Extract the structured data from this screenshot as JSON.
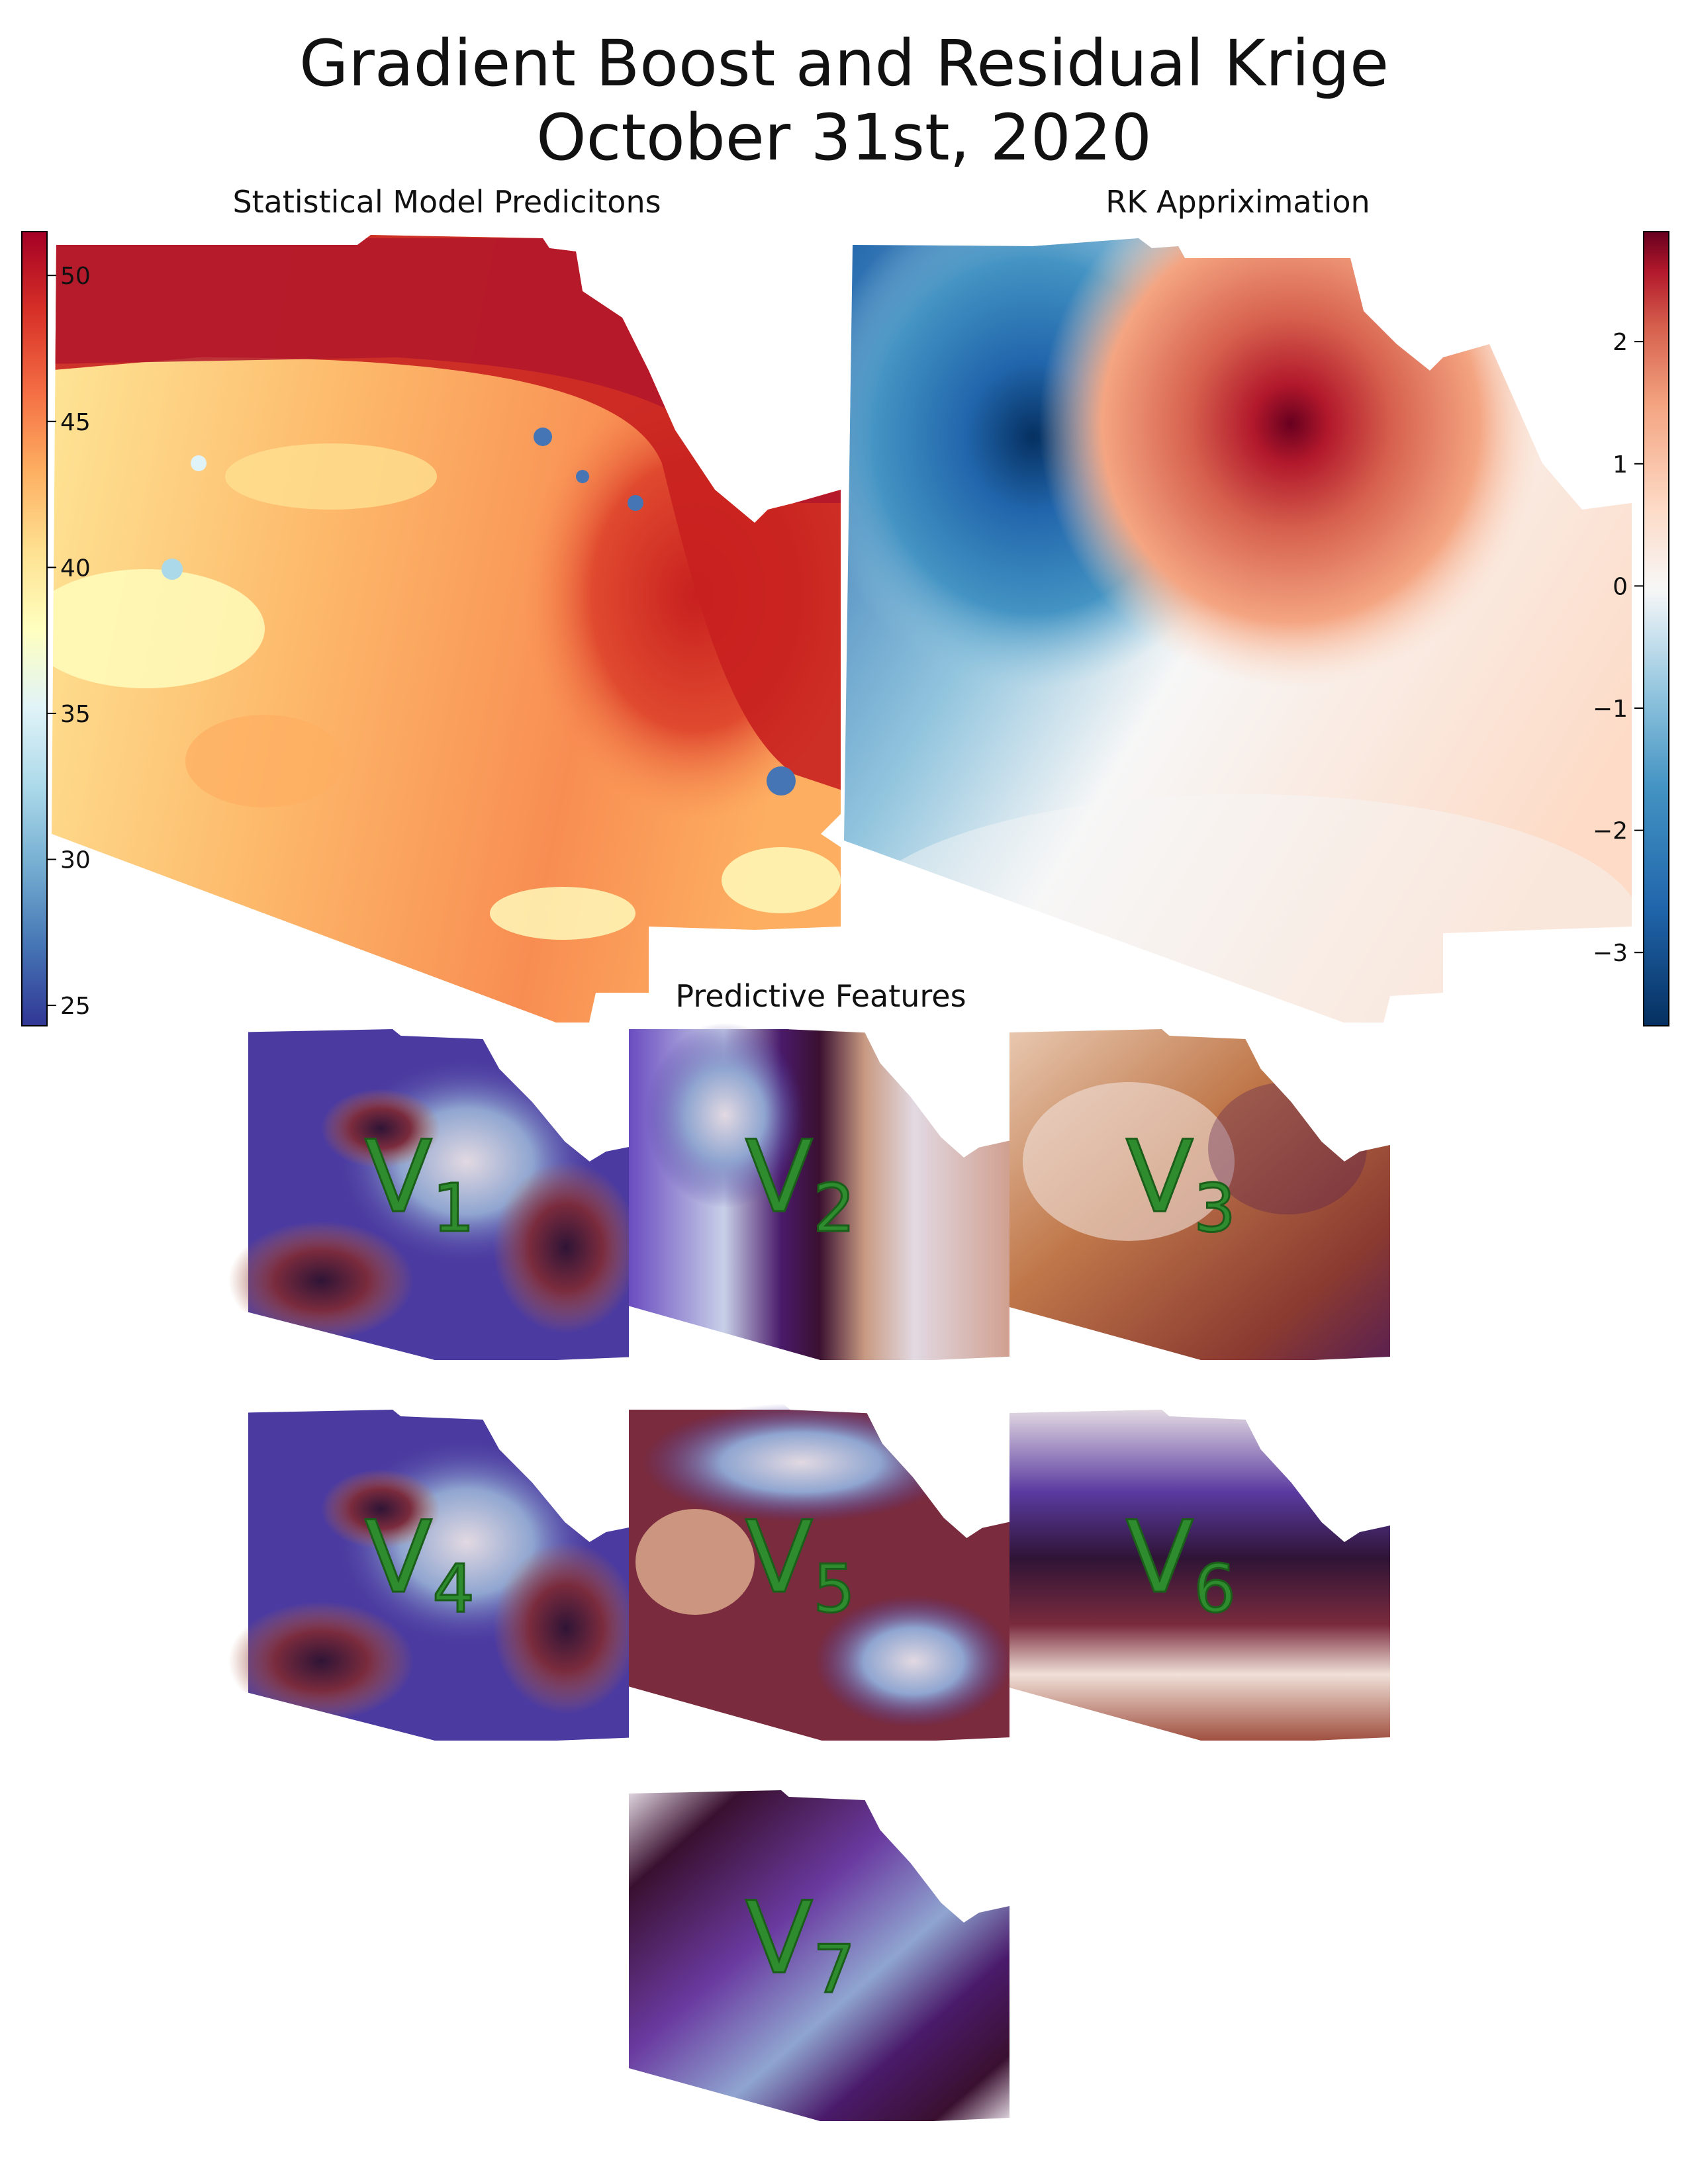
{
  "figure": {
    "title_line1": "Gradient Boost and Residual Krige",
    "title_line2": "October 31st, 2020",
    "left_panel_title": "Statistical Model Predicitons",
    "right_panel_title": "RK Appriximation",
    "features_title": "Predictive Features"
  },
  "chart_data": [
    {
      "type": "heatmap",
      "title": "Statistical Model Predicitons",
      "colormap": "RdYlBu_r",
      "colorbar": {
        "ticks": [
          25,
          30,
          35,
          40,
          45,
          50
        ],
        "range": [
          24.3,
          51.5
        ],
        "placement": "left"
      },
      "colors": {
        "low": "#313695",
        "mid": "#ffffbf",
        "high": "#a50026"
      }
    },
    {
      "type": "heatmap",
      "title": "RK Appriximation",
      "colormap": "RdBu_r",
      "colorbar": {
        "ticks": [
          2,
          1,
          0,
          -1,
          -2,
          -3
        ],
        "range": [
          -3.6,
          2.9
        ],
        "placement": "right"
      },
      "colors": {
        "low": "#053061",
        "mid": "#f7f7f7",
        "high": "#67001f"
      }
    },
    {
      "type": "heatmap",
      "title": "Predictive Features",
      "colormap": "twilight_shifted",
      "panels": [
        {
          "var": "V",
          "sub": "1"
        },
        {
          "var": "V",
          "sub": "2"
        },
        {
          "var": "V",
          "sub": "3"
        },
        {
          "var": "V",
          "sub": "4"
        },
        {
          "var": "V",
          "sub": "5"
        },
        {
          "var": "V",
          "sub": "6"
        },
        {
          "var": "V",
          "sub": "7"
        }
      ]
    }
  ]
}
